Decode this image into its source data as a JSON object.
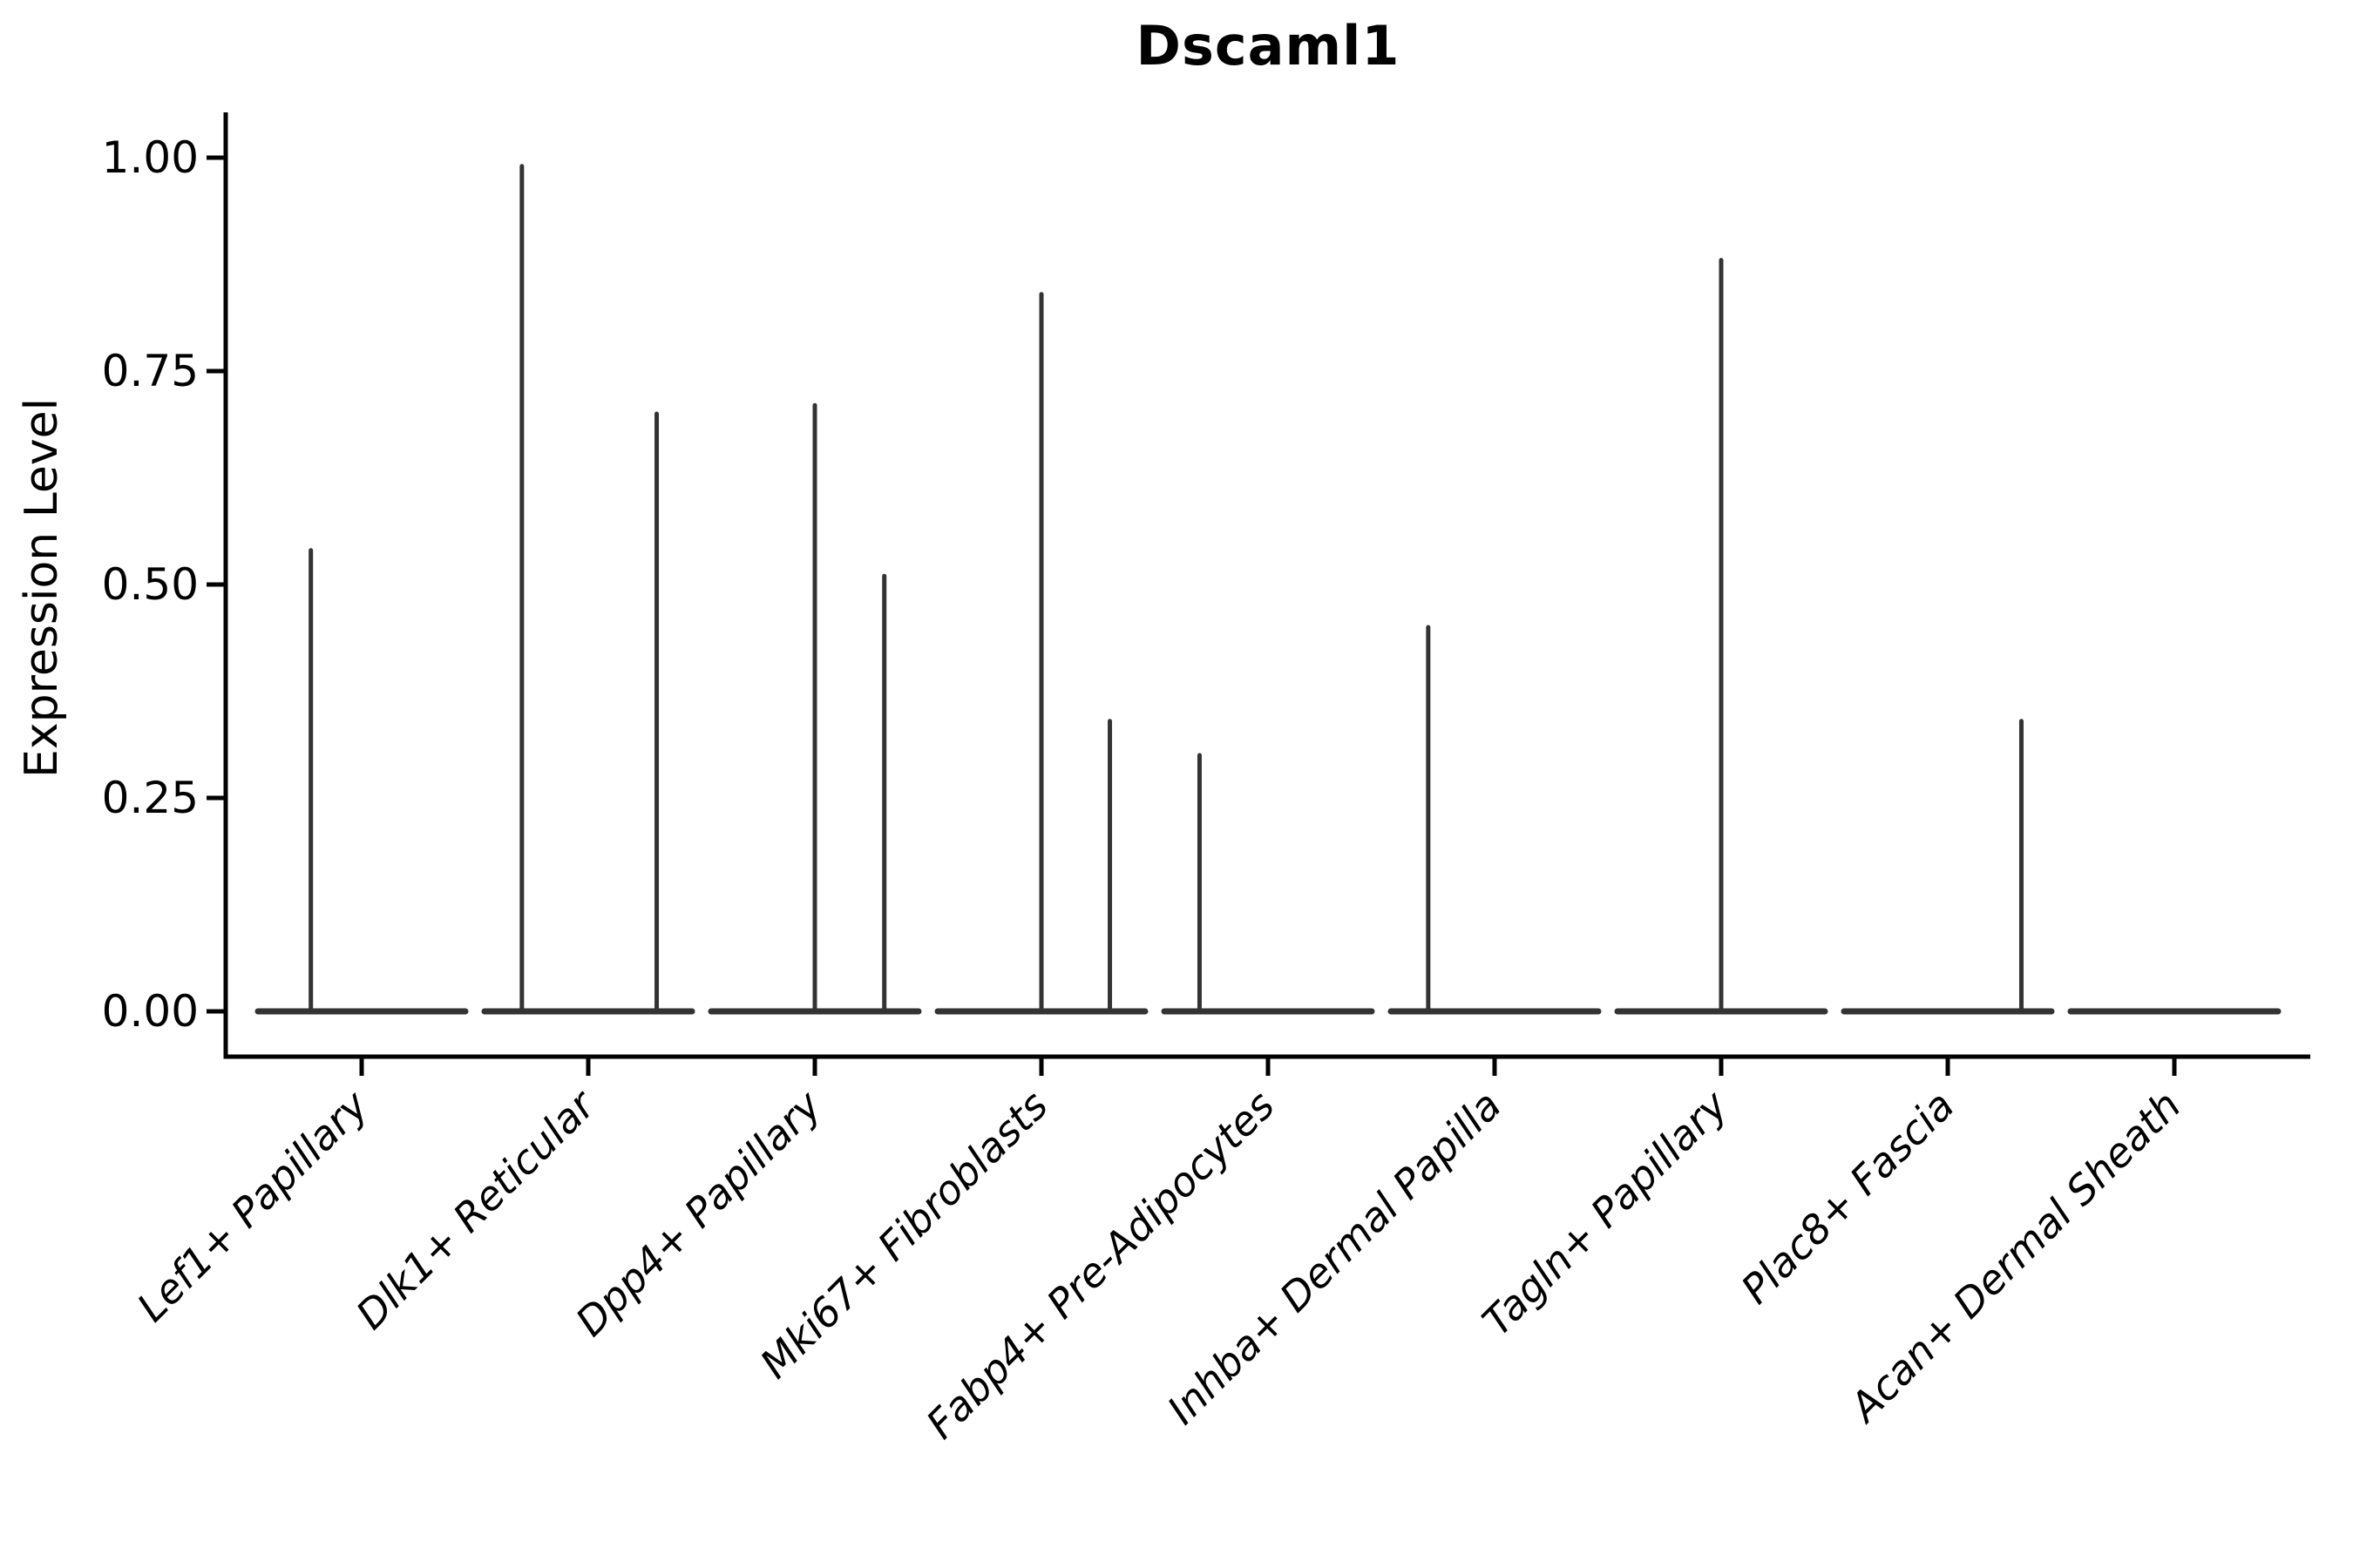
{
  "title": "Dscaml1",
  "y_axis": {
    "label": "Expression Level",
    "tick_labels": [
      "0.00",
      "0.25",
      "0.50",
      "0.75",
      "1.00"
    ],
    "tick_values": [
      0.0,
      0.25,
      0.5,
      0.75,
      1.0
    ]
  },
  "x_axis": {
    "label": "",
    "categories": [
      "Lef1+ Papillary",
      "Dlk1+ Reticular",
      "Dpp4+ Papillary",
      "Mki67+ Fibroblasts",
      "Fabp4+ Pre-Adipocytes",
      "Inhba+ Dermal Papilla",
      "Tagln+ Papillary",
      "Plac8+ Fascia",
      "Acan+ Dermal Sheath"
    ]
  },
  "colors": {
    "violin": "#333333",
    "axis": "#000000",
    "text": "#000000",
    "background": "#ffffff"
  },
  "chart_data": {
    "type": "violin",
    "title": "Dscaml1",
    "xlabel": "",
    "ylabel": "Expression Level",
    "ylim": [
      0.0,
      1.0
    ],
    "grid": false,
    "legend": null,
    "ytick_values": [
      0.0,
      0.25,
      0.5,
      0.75,
      1.0
    ],
    "ytick_labels": [
      "0.00",
      "0.25",
      "0.50",
      "0.75",
      "1.00"
    ],
    "categories": [
      "Lef1+ Papillary",
      "Dlk1+ Reticular",
      "Dpp4+ Papillary",
      "Mki67+ Fibroblasts",
      "Fabp4+ Pre-Adipocytes",
      "Inhba+ Dermal Papilla",
      "Tagln+ Papillary",
      "Plac8+ Fascia",
      "Acan+ Dermal Sheath"
    ],
    "violins": [
      {
        "category": "Lef1+ Papillary",
        "baseline_value": 0.0,
        "spikes": [
          {
            "x_offset_frac": -0.49,
            "value": 0.54
          }
        ]
      },
      {
        "category": "Dlk1+ Reticular",
        "baseline_value": 0.0,
        "spikes": [
          {
            "x_offset_frac": -0.64,
            "value": 0.99
          },
          {
            "x_offset_frac": 0.66,
            "value": 0.7
          }
        ]
      },
      {
        "category": "Dpp4+ Papillary",
        "baseline_value": 0.0,
        "spikes": [
          {
            "x_offset_frac": 0.0,
            "value": 0.71
          },
          {
            "x_offset_frac": 0.67,
            "value": 0.51
          }
        ]
      },
      {
        "category": "Mki67+ Fibroblasts",
        "baseline_value": 0.0,
        "spikes": [
          {
            "x_offset_frac": 0.0,
            "value": 0.84
          },
          {
            "x_offset_frac": 0.66,
            "value": 0.34
          }
        ]
      },
      {
        "category": "Fabp4+ Pre-Adipocytes",
        "baseline_value": 0.0,
        "spikes": [
          {
            "x_offset_frac": -0.66,
            "value": 0.3
          }
        ]
      },
      {
        "category": "Inhba+ Dermal Papilla",
        "baseline_value": 0.0,
        "spikes": [
          {
            "x_offset_frac": -0.64,
            "value": 0.45
          }
        ]
      },
      {
        "category": "Tagln+ Papillary",
        "baseline_value": 0.0,
        "spikes": [
          {
            "x_offset_frac": 0.0,
            "value": 0.88
          }
        ]
      },
      {
        "category": "Plac8+ Fascia",
        "baseline_value": 0.0,
        "spikes": [
          {
            "x_offset_frac": 0.71,
            "value": 0.34
          }
        ]
      },
      {
        "category": "Acan+ Dermal Sheath",
        "baseline_value": 0.0,
        "spikes": []
      }
    ]
  }
}
